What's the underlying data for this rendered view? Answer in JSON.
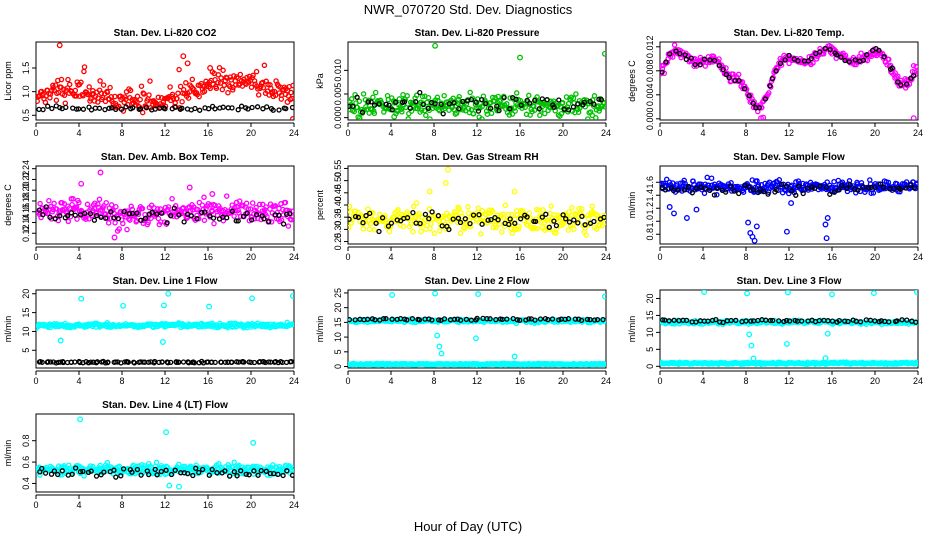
{
  "title": "NWR_070720  Std. Dev. Diagnostics",
  "xlabel": "Hour of Day (UTC)",
  "chart_data": [
    {
      "type": "scatter",
      "title": "Stan. Dev. Li-820 CO2",
      "ylabel": "Licor ppm",
      "color": "#ff0000",
      "xlim": [
        0,
        24
      ],
      "ylim": [
        0.4,
        2.05
      ],
      "xticks": [
        0,
        4,
        8,
        12,
        16,
        20,
        24
      ],
      "yticks": [
        {
          "v": 0.5,
          "t": "0.5"
        },
        {
          "v": 1.0,
          "t": "1.0"
        },
        {
          "v": 1.5,
          "t": "1.5"
        }
      ],
      "main": {
        "n": 280,
        "base": 0.78,
        "spread": 0.16,
        "wave": 0.18,
        "trend": 0.012,
        "skew": 0.35,
        "seed": 11
      },
      "ref": {
        "n": 62,
        "base": 0.65,
        "spread": 0.05,
        "seed": 12
      },
      "outliers": [
        [
          2.2,
          1.98
        ],
        [
          13.7,
          1.75
        ],
        [
          14.1,
          1.6
        ],
        [
          23.4,
          0.78
        ],
        [
          23.9,
          0.42
        ],
        [
          16.2,
          1.5
        ]
      ]
    },
    {
      "type": "scatter",
      "title": "Stan. Dev. Li-820 Pressure",
      "ylabel": "kPa",
      "color": "#00c000",
      "xlim": [
        0,
        24
      ],
      "ylim": [
        -0.0005,
        0.016
      ],
      "xticks": [
        0,
        4,
        8,
        12,
        16,
        20,
        24
      ],
      "yticks": [
        {
          "v": 0.0,
          "t": "0.000"
        },
        {
          "v": 0.005,
          "t": "0.005"
        },
        {
          "v": 0.01,
          "t": "0.010"
        }
      ],
      "main": {
        "n": 300,
        "base": 0.0025,
        "spread": 0.0022,
        "wave": 0.0,
        "trend": 0.0,
        "skew": 0.0,
        "seed": 21
      },
      "ref": {
        "n": 60,
        "base": 0.003,
        "spread": 0.0018,
        "seed": 22
      },
      "outliers": [
        [
          8.1,
          0.0152
        ],
        [
          16.0,
          0.0127
        ],
        [
          23.9,
          0.0135
        ],
        [
          4.3,
          0.0002
        ]
      ]
    },
    {
      "type": "scatter",
      "title": "Stan. Dev. Li-820 Temp.",
      "ylabel": "degrees C",
      "color": "#ff00ff",
      "xlim": [
        0,
        24
      ],
      "ylim": [
        -0.0002,
        0.0128
      ],
      "xticks": [
        0,
        4,
        8,
        12,
        16,
        20,
        24
      ],
      "yticks": [
        {
          "v": 0.0,
          "t": "0.000"
        },
        {
          "v": 0.004,
          "t": "0.004"
        },
        {
          "v": 0.008,
          "t": "0.008"
        },
        {
          "v": 0.012,
          "t": "0.012"
        }
      ],
      "main": {
        "n": 300,
        "shape": "temp",
        "spread": 0.0008,
        "seed": 31
      },
      "ref": {
        "n": 60,
        "shape": "temp",
        "spread": 0.0005,
        "seed": 32
      },
      "outliers": [
        [
          9.4,
          0.0001
        ],
        [
          9.6,
          0.0002
        ],
        [
          23.6,
          0.0001
        ]
      ]
    },
    {
      "type": "scatter",
      "title": "Stan. Dev. Amb. Box Temp.",
      "ylabel": "degrees C",
      "color": "#ff00ff",
      "xlim": [
        0,
        24
      ],
      "ylim": [
        0.1,
        0.245
      ],
      "xticks": [
        0,
        4,
        8,
        12,
        16,
        20,
        24
      ],
      "yticks": [
        {
          "v": 0.12,
          "t": "0.12"
        },
        {
          "v": 0.14,
          "t": "0.14"
        },
        {
          "v": 0.16,
          "t": "0.16"
        },
        {
          "v": 0.18,
          "t": "0.18"
        },
        {
          "v": 0.2,
          "t": "0.20"
        },
        {
          "v": 0.22,
          "t": "0.22"
        },
        {
          "v": 0.24,
          "t": "0.24"
        }
      ],
      "main": {
        "n": 300,
        "base": 0.158,
        "spread": 0.02,
        "wave": 0.005,
        "trend": 0.0,
        "skew": 0.0,
        "seed": 41
      },
      "ref": {
        "n": 60,
        "base": 0.152,
        "spread": 0.012,
        "seed": 42
      },
      "outliers": [
        [
          6.0,
          0.233
        ],
        [
          7.3,
          0.112
        ],
        [
          14.3,
          0.205
        ],
        [
          16.4,
          0.193
        ],
        [
          4.2,
          0.212
        ]
      ]
    },
    {
      "type": "scatter",
      "title": "Stan. Dev. Gas Stream RH",
      "ylabel": "percent",
      "color": "#ffff00",
      "xlim": [
        0,
        24
      ],
      "ylim": [
        0.24,
        0.56
      ],
      "xticks": [
        0,
        4,
        8,
        12,
        16,
        20,
        24
      ],
      "yticks": [
        {
          "v": 0.25,
          "t": "0.25"
        },
        {
          "v": 0.3,
          "t": "0.30"
        },
        {
          "v": 0.35,
          "t": "0.35"
        },
        {
          "v": 0.4,
          "t": "0.40"
        },
        {
          "v": 0.45,
          "t": "0.45"
        },
        {
          "v": 0.5,
          "t": "0.50"
        },
        {
          "v": 0.55,
          "t": "0.55"
        }
      ],
      "main": {
        "n": 300,
        "base": 0.34,
        "spread": 0.045,
        "wave": 0.0,
        "trend": 0.0,
        "skew": 0.0,
        "seed": 51
      },
      "ref": {
        "n": 62,
        "base": 0.335,
        "spread": 0.035,
        "seed": 52
      },
      "outliers": [
        [
          9.3,
          0.545
        ],
        [
          9.1,
          0.49
        ],
        [
          7.6,
          0.455
        ],
        [
          15.5,
          0.455
        ]
      ]
    },
    {
      "type": "scatter",
      "title": "Stan. Dev. Sample Flow",
      "ylabel": "ml/min",
      "color": "#0000ff",
      "xlim": [
        0,
        24
      ],
      "ylim": [
        0.65,
        1.85
      ],
      "xticks": [
        0,
        4,
        8,
        12,
        16,
        20,
        24
      ],
      "yticks": [
        {
          "v": 0.8,
          "t": "0.8"
        },
        {
          "v": 1.0,
          "t": "1.0"
        },
        {
          "v": 1.2,
          "t": "1.2"
        },
        {
          "v": 1.4,
          "t": "1.4"
        },
        {
          "v": 1.6,
          "t": "1.6"
        }
      ],
      "main": {
        "n": 300,
        "base": 1.53,
        "spread": 0.09,
        "wave": 0.0,
        "trend": 0.0,
        "skew": 0.0,
        "seed": 61
      },
      "ref": {
        "n": 60,
        "base": 1.49,
        "spread": 0.07,
        "seed": 62
      },
      "outliers": [
        [
          0.9,
          1.22
        ],
        [
          1.3,
          1.12
        ],
        [
          2.5,
          1.05
        ],
        [
          3.4,
          1.18
        ],
        [
          8.2,
          0.98
        ],
        [
          8.4,
          0.82
        ],
        [
          8.6,
          0.76
        ],
        [
          8.8,
          0.7
        ],
        [
          9.0,
          0.92
        ],
        [
          11.8,
          0.84
        ],
        [
          15.4,
          0.95
        ],
        [
          15.6,
          1.05
        ],
        [
          15.5,
          0.74
        ],
        [
          12.2,
          1.28
        ]
      ]
    },
    {
      "type": "scatter",
      "title": "Stan. Dev. Line 1 Flow",
      "ylabel": "ml/min",
      "color": "#00ffff",
      "xlim": [
        0,
        24
      ],
      "ylim": [
        0.3,
        21
      ],
      "xticks": [
        0,
        4,
        8,
        12,
        16,
        20,
        24
      ],
      "yticks": [
        {
          "v": 5,
          "t": "5"
        },
        {
          "v": 10,
          "t": "10"
        },
        {
          "v": 15,
          "t": "15"
        },
        {
          "v": 20,
          "t": "20"
        }
      ],
      "main": {
        "n": 320,
        "base": 11.6,
        "spread": 0.55,
        "wave": 0.0,
        "trend": 0.0,
        "skew": 0.0,
        "seed": 71
      },
      "ref": {
        "n": 62,
        "base": 1.8,
        "spread": 0.15,
        "seed": 72
      },
      "low": {
        "n": 40,
        "base": 1.9,
        "spread": 0.15,
        "seed": 73
      },
      "outliers": [
        [
          4.2,
          18.7
        ],
        [
          8.1,
          16.8
        ],
        [
          11.9,
          16.9
        ],
        [
          12.3,
          20.0
        ],
        [
          16.1,
          16.6
        ],
        [
          20.1,
          18.8
        ],
        [
          23.9,
          19.4
        ],
        [
          2.3,
          7.6
        ],
        [
          11.8,
          7.2
        ]
      ]
    },
    {
      "type": "scatter",
      "title": "Stan. Dev. Line 2 Flow",
      "ylabel": "ml/min",
      "color": "#00ffff",
      "xlim": [
        0,
        24
      ],
      "ylim": [
        -0.5,
        26
      ],
      "xticks": [
        0,
        4,
        8,
        12,
        16,
        20,
        24
      ],
      "yticks": [
        {
          "v": 0,
          "t": "0"
        },
        {
          "v": 5,
          "t": "5"
        },
        {
          "v": 10,
          "t": "10"
        },
        {
          "v": 15,
          "t": "15"
        },
        {
          "v": 20,
          "t": "20"
        },
        {
          "v": 25,
          "t": "25"
        }
      ],
      "main": {
        "n": 320,
        "base": 0.8,
        "spread": 0.25,
        "wave": 0.0,
        "trend": 0.0,
        "skew": 0.0,
        "seed": 81
      },
      "ref": {
        "n": 62,
        "base": 16.0,
        "spread": 0.35,
        "seed": 82
      },
      "band": {
        "n": 240,
        "base": 15.5,
        "spread": 0.55,
        "seed": 83
      },
      "outliers": [
        [
          4.1,
          24.3
        ],
        [
          8.1,
          24.8
        ],
        [
          12.1,
          24.6
        ],
        [
          15.9,
          24.5
        ],
        [
          23.9,
          23.8
        ],
        [
          8.3,
          10.5
        ],
        [
          8.5,
          6.8
        ],
        [
          8.7,
          4.4
        ],
        [
          11.9,
          9.6
        ],
        [
          15.5,
          3.4
        ]
      ]
    },
    {
      "type": "scatter",
      "title": "Stan. Dev. Line 3 Flow",
      "ylabel": "ml/min",
      "color": "#00ffff",
      "xlim": [
        0,
        24
      ],
      "ylim": [
        -0.5,
        22.5
      ],
      "xticks": [
        0,
        4,
        8,
        12,
        16,
        20,
        24
      ],
      "yticks": [
        {
          "v": 0,
          "t": "0"
        },
        {
          "v": 5,
          "t": "5"
        },
        {
          "v": 10,
          "t": "10"
        },
        {
          "v": 15,
          "t": "15"
        },
        {
          "v": 20,
          "t": "20"
        }
      ],
      "main": {
        "n": 320,
        "base": 0.9,
        "spread": 0.25,
        "wave": 0.0,
        "trend": 0.0,
        "skew": 0.0,
        "seed": 91
      },
      "ref": {
        "n": 62,
        "base": 13.4,
        "spread": 0.3,
        "seed": 92
      },
      "band": {
        "n": 240,
        "base": 13.0,
        "spread": 0.5,
        "seed": 93
      },
      "outliers": [
        [
          4.1,
          21.9
        ],
        [
          8.1,
          21.5
        ],
        [
          11.9,
          21.8
        ],
        [
          16.0,
          21.2
        ],
        [
          19.9,
          21.6
        ],
        [
          23.9,
          21.9
        ],
        [
          8.3,
          9.4
        ],
        [
          8.5,
          6.1
        ],
        [
          8.7,
          2.3
        ],
        [
          11.8,
          6.6
        ],
        [
          15.4,
          2.4
        ],
        [
          15.6,
          9.6
        ]
      ]
    },
    {
      "type": "scatter",
      "title": "Stan. Dev. Line 4 (LT) Flow",
      "ylabel": "ml/min",
      "color": "#00ffff",
      "xlim": [
        0,
        24
      ],
      "ylim": [
        0.32,
        1.05
      ],
      "xticks": [
        0,
        4,
        8,
        12,
        16,
        20,
        24
      ],
      "yticks": [
        {
          "v": 0.4,
          "t": "0.4"
        },
        {
          "v": 0.6,
          "t": "0.6"
        },
        {
          "v": 0.8,
          "t": "0.8"
        }
      ],
      "main": {
        "n": 320,
        "base": 0.53,
        "spread": 0.045,
        "wave": 0.0,
        "trend": 0.0,
        "skew": 0.0,
        "seed": 101
      },
      "ref": {
        "n": 62,
        "base": 0.5,
        "spread": 0.04,
        "seed": 102
      },
      "outliers": [
        [
          4.1,
          1.0
        ],
        [
          12.1,
          0.88
        ],
        [
          20.2,
          0.78
        ],
        [
          12.4,
          0.38
        ],
        [
          13.3,
          0.37
        ]
      ]
    }
  ]
}
